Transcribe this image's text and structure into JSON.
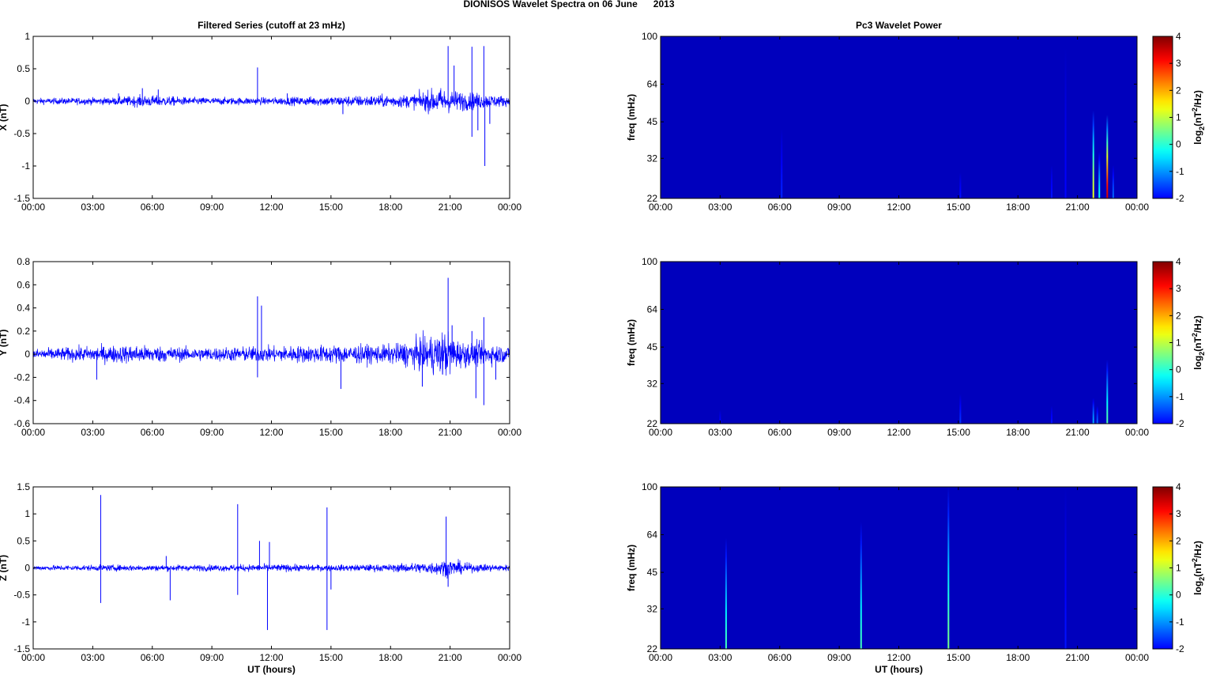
{
  "figure": {
    "title": "DIONISOS Wavelet Spectra on 06 June      2013"
  },
  "chart_data": [
    {
      "type": "line",
      "panel": "time-series-x",
      "title": "Filtered Series (cutoff at 23 mHz)",
      "xlabel": "",
      "ylabel": "X (nT)",
      "xlim": [
        0,
        24
      ],
      "ylim": [
        -1.5,
        1
      ],
      "xticks": [
        "00:00",
        "03:00",
        "06:00",
        "09:00",
        "12:00",
        "15:00",
        "18:00",
        "21:00",
        "00:00"
      ],
      "yticks": [
        "1",
        "0.5",
        "0",
        "-0.5",
        "-1",
        "-1.5"
      ],
      "ytick_values": [
        1,
        0.5,
        0,
        -0.5,
        -1,
        -1.5
      ],
      "line_color": "#0000ff",
      "series": [
        {
          "baseline_amplitude": 0.04,
          "envelope": [
            [
              0,
              0.04
            ],
            [
              4,
              0.05
            ],
            [
              5.5,
              0.08
            ],
            [
              6.5,
              0.07
            ],
            [
              8,
              0.05
            ],
            [
              12,
              0.05
            ],
            [
              15.5,
              0.07
            ],
            [
              19,
              0.09
            ],
            [
              20.5,
              0.18
            ],
            [
              21,
              0.15
            ],
            [
              22,
              0.12
            ],
            [
              23.5,
              0.08
            ],
            [
              24,
              0.06
            ]
          ],
          "spikes": [
            {
              "x": 4.3,
              "y": 0.12
            },
            {
              "x": 5.5,
              "y": 0.2
            },
            {
              "x": 6.3,
              "y": 0.18
            },
            {
              "x": 11.3,
              "y": 0.52
            },
            {
              "x": 12.8,
              "y": 0.12
            },
            {
              "x": 15.6,
              "y": -0.2
            },
            {
              "x": 20.9,
              "y": 0.85
            },
            {
              "x": 21.2,
              "y": 0.55
            },
            {
              "x": 22.1,
              "y": 0.84
            },
            {
              "x": 22.1,
              "y": -0.55
            },
            {
              "x": 22.4,
              "y": -0.45
            },
            {
              "x": 22.7,
              "y": 0.85
            },
            {
              "x": 22.75,
              "y": -1.0
            },
            {
              "x": 23.0,
              "y": -0.35
            }
          ]
        }
      ]
    },
    {
      "type": "line",
      "panel": "time-series-y",
      "xlabel": "",
      "ylabel": "Y (nT)",
      "xlim": [
        0,
        24
      ],
      "ylim": [
        -0.6,
        0.8
      ],
      "xticks": [
        "00:00",
        "03:00",
        "06:00",
        "09:00",
        "12:00",
        "15:00",
        "18:00",
        "21:00",
        "00:00"
      ],
      "yticks": [
        "0.8",
        "0.6",
        "0.4",
        "0.2",
        "0",
        "-0.2",
        "-0.4",
        "-0.6"
      ],
      "ytick_values": [
        0.8,
        0.6,
        0.4,
        0.2,
        0,
        -0.2,
        -0.4,
        -0.6
      ],
      "line_color": "#0000ff",
      "series": [
        {
          "baseline_amplitude": 0.04,
          "envelope": [
            [
              0,
              0.04
            ],
            [
              3,
              0.06
            ],
            [
              5,
              0.07
            ],
            [
              8,
              0.05
            ],
            [
              12,
              0.06
            ],
            [
              15.5,
              0.07
            ],
            [
              18,
              0.07
            ],
            [
              19.5,
              0.12
            ],
            [
              20.8,
              0.18
            ],
            [
              21.5,
              0.1
            ],
            [
              23,
              0.08
            ],
            [
              24,
              0.06
            ]
          ],
          "spikes": [
            {
              "x": 3.2,
              "y": -0.22
            },
            {
              "x": 11.3,
              "y": 0.5
            },
            {
              "x": 11.5,
              "y": 0.42
            },
            {
              "x": 11.3,
              "y": -0.2
            },
            {
              "x": 15.5,
              "y": -0.3
            },
            {
              "x": 19.6,
              "y": -0.28
            },
            {
              "x": 20.9,
              "y": 0.66
            },
            {
              "x": 21.1,
              "y": 0.25
            },
            {
              "x": 22.1,
              "y": 0.2
            },
            {
              "x": 22.3,
              "y": -0.38
            },
            {
              "x": 22.7,
              "y": 0.32
            },
            {
              "x": 22.7,
              "y": -0.44
            },
            {
              "x": 23.3,
              "y": -0.22
            }
          ]
        }
      ]
    },
    {
      "type": "line",
      "panel": "time-series-z",
      "xlabel": "UT (hours)",
      "ylabel": "Z (nT)",
      "xlim": [
        0,
        24
      ],
      "ylim": [
        -1.5,
        1.5
      ],
      "xticks": [
        "00:00",
        "03:00",
        "06:00",
        "09:00",
        "12:00",
        "15:00",
        "18:00",
        "21:00",
        "00:00"
      ],
      "yticks": [
        "1.5",
        "1",
        "0.5",
        "0",
        "-0.5",
        "-1",
        "-1.5"
      ],
      "ytick_values": [
        1.5,
        1,
        0.5,
        0,
        -0.5,
        -1,
        -1.5
      ],
      "line_color": "#0000ff",
      "series": [
        {
          "baseline_amplitude": 0.04,
          "envelope": [
            [
              0,
              0.04
            ],
            [
              4,
              0.05
            ],
            [
              8,
              0.05
            ],
            [
              12,
              0.06
            ],
            [
              15,
              0.05
            ],
            [
              18,
              0.06
            ],
            [
              20,
              0.1
            ],
            [
              21,
              0.14
            ],
            [
              22,
              0.07
            ],
            [
              24,
              0.05
            ]
          ],
          "spikes": [
            {
              "x": 3.4,
              "y": 1.35
            },
            {
              "x": 3.4,
              "y": -0.65
            },
            {
              "x": 6.7,
              "y": 0.22
            },
            {
              "x": 6.9,
              "y": -0.6
            },
            {
              "x": 10.3,
              "y": 1.18
            },
            {
              "x": 10.3,
              "y": -0.5
            },
            {
              "x": 11.4,
              "y": 0.5
            },
            {
              "x": 11.8,
              "y": -1.15
            },
            {
              "x": 11.9,
              "y": 0.48
            },
            {
              "x": 14.8,
              "y": 1.12
            },
            {
              "x": 14.8,
              "y": -1.15
            },
            {
              "x": 15.0,
              "y": -0.4
            },
            {
              "x": 20.8,
              "y": 0.95
            },
            {
              "x": 20.9,
              "y": -0.35
            }
          ]
        }
      ]
    },
    {
      "type": "heatmap",
      "panel": "wavelet-power-x",
      "title": "Pc3 Wavelet Power",
      "xlabel": "",
      "ylabel": "freq (mHz)",
      "xlim": [
        0,
        24
      ],
      "ylim": [
        22,
        100
      ],
      "y_scale": "log",
      "xticks": [
        "00:00",
        "03:00",
        "06:00",
        "09:00",
        "12:00",
        "15:00",
        "18:00",
        "21:00",
        "00:00"
      ],
      "yticks": [
        "100",
        "64",
        "45",
        "32",
        "22"
      ],
      "ytick_values": [
        100,
        64,
        45,
        32,
        22
      ],
      "colorbar": {
        "label": "log2(nT2/Hz)",
        "range": [
          -2,
          4
        ],
        "ticks": [
          "4",
          "3",
          "2",
          "1",
          "0",
          "-1",
          "-2"
        ]
      },
      "background_value": -2,
      "streaks": [
        {
          "t": 6.1,
          "f_top": 42,
          "peak": -1.4
        },
        {
          "t": 15.1,
          "f_top": 28,
          "peak": -1.5
        },
        {
          "t": 19.7,
          "f_top": 30,
          "peak": -1.5
        },
        {
          "t": 20.4,
          "f_top": 90,
          "peak": -1.6
        },
        {
          "t": 21.8,
          "f_top": 50,
          "peak": 1.3
        },
        {
          "t": 22.1,
          "f_top": 34,
          "peak": 0.0
        },
        {
          "t": 22.5,
          "f_top": 48,
          "peak": 3.2
        },
        {
          "t": 22.8,
          "f_top": 30,
          "peak": -1.0
        }
      ]
    },
    {
      "type": "heatmap",
      "panel": "wavelet-power-y",
      "xlabel": "",
      "ylabel": "freq (mHz)",
      "xlim": [
        0,
        24
      ],
      "ylim": [
        22,
        100
      ],
      "y_scale": "log",
      "xticks": [
        "00:00",
        "03:00",
        "06:00",
        "09:00",
        "12:00",
        "15:00",
        "18:00",
        "21:00",
        "00:00"
      ],
      "yticks": [
        "100",
        "64",
        "45",
        "32",
        "22"
      ],
      "ytick_values": [
        100,
        64,
        45,
        32,
        22
      ],
      "colorbar": {
        "label": "log2(nT2/Hz)",
        "range": [
          -2,
          4
        ],
        "ticks": [
          "4",
          "3",
          "2",
          "1",
          "0",
          "-1",
          "-2"
        ]
      },
      "background_value": -2,
      "streaks": [
        {
          "t": 3.0,
          "f_top": 25,
          "peak": -1.6
        },
        {
          "t": 15.1,
          "f_top": 29,
          "peak": -1.3
        },
        {
          "t": 19.7,
          "f_top": 26,
          "peak": -1.5
        },
        {
          "t": 21.8,
          "f_top": 28,
          "peak": -0.6
        },
        {
          "t": 22.0,
          "f_top": 26,
          "peak": -1.0
        },
        {
          "t": 22.5,
          "f_top": 40,
          "peak": 0.4
        }
      ]
    },
    {
      "type": "heatmap",
      "panel": "wavelet-power-z",
      "xlabel": "UT (hours)",
      "ylabel": "freq (mHz)",
      "xlim": [
        0,
        24
      ],
      "ylim": [
        22,
        100
      ],
      "y_scale": "log",
      "xticks": [
        "00:00",
        "03:00",
        "06:00",
        "09:00",
        "12:00",
        "15:00",
        "18:00",
        "21:00",
        "00:00"
      ],
      "yticks": [
        "100",
        "64",
        "45",
        "32",
        "22"
      ],
      "ytick_values": [
        100,
        64,
        45,
        32,
        22
      ],
      "colorbar": {
        "label": "log2(nT2/Hz)",
        "range": [
          -2,
          4
        ],
        "ticks": [
          "4",
          "3",
          "2",
          "1",
          "0",
          "-1",
          "-2"
        ]
      },
      "background_value": -2,
      "streaks": [
        {
          "t": 3.3,
          "f_top": 62,
          "peak": 0.3
        },
        {
          "t": 10.1,
          "f_top": 72,
          "peak": 0.3
        },
        {
          "t": 14.5,
          "f_top": 100,
          "peak": 0.6
        },
        {
          "t": 20.4,
          "f_top": 100,
          "peak": -1.5
        }
      ]
    }
  ]
}
